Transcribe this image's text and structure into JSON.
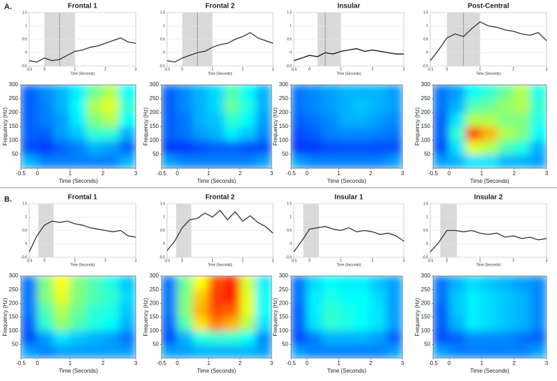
{
  "panels": [
    "A.",
    "B."
  ],
  "chart_data": [
    {
      "type": "line",
      "title": "Frontal 1",
      "xlabel": "Time (Seconds)",
      "x": [
        -0.5,
        -0.25,
        0,
        0.25,
        0.5,
        0.75,
        1,
        1.25,
        1.5,
        1.75,
        2,
        2.25,
        2.5,
        2.75,
        3
      ],
      "values": [
        -0.3,
        -0.35,
        -0.2,
        -0.3,
        -0.25,
        -0.1,
        0.05,
        0.1,
        0.2,
        0.25,
        0.35,
        0.45,
        0.55,
        0.4,
        0.35
      ],
      "color": "#333333",
      "xlim": [
        -0.5,
        3
      ],
      "xticks": [
        -0.5,
        0,
        1,
        2,
        3
      ],
      "ylim": [
        -0.5,
        1.5
      ],
      "yticks": [
        -0.5,
        0,
        0.5,
        1,
        1.5
      ],
      "highlight": [
        0,
        1
      ],
      "marker_x": 0.5
    },
    {
      "type": "line",
      "title": "Frontal 2",
      "xlabel": "Time (Seconds)",
      "x": [
        -0.5,
        -0.25,
        0,
        0.25,
        0.5,
        0.75,
        1,
        1.25,
        1.5,
        1.75,
        2,
        2.25,
        2.5,
        2.75,
        3
      ],
      "values": [
        -0.3,
        -0.35,
        -0.2,
        -0.1,
        0,
        0.05,
        0.2,
        0.3,
        0.35,
        0.5,
        0.6,
        0.75,
        0.55,
        0.45,
        0.35
      ],
      "color": "#333333",
      "xlim": [
        -0.5,
        3
      ],
      "xticks": [
        -0.5,
        0,
        1,
        2,
        3
      ],
      "ylim": [
        -0.5,
        1.5
      ],
      "yticks": [
        -0.5,
        0,
        0.5,
        1,
        1.5
      ],
      "highlight": [
        0,
        1
      ],
      "marker_x": 0.5
    },
    {
      "type": "line",
      "title": "Insular",
      "xlabel": "Time (Seconds)",
      "x": [
        -0.5,
        -0.25,
        0,
        0.25,
        0.5,
        0.75,
        1,
        1.25,
        1.5,
        1.75,
        2,
        2.25,
        2.5,
        2.75,
        3
      ],
      "values": [
        -0.3,
        -0.2,
        -0.1,
        -0.15,
        0,
        -0.05,
        0.05,
        0.1,
        0.15,
        0.05,
        0.1,
        0.05,
        0,
        -0.05,
        -0.05
      ],
      "color": "#111111",
      "xlim": [
        -0.5,
        3
      ],
      "xticks": [
        -0.5,
        0,
        1,
        2,
        3
      ],
      "ylim": [
        -0.5,
        1.5
      ],
      "yticks": [
        -0.5,
        0,
        0.5,
        1,
        1.5
      ],
      "highlight": [
        0.25,
        1
      ],
      "marker_x": 0.5
    },
    {
      "type": "line",
      "title": "Post-Central",
      "xlabel": "Time (Seconds)",
      "x": [
        -0.5,
        -0.25,
        0,
        0.25,
        0.5,
        0.75,
        1,
        1.25,
        1.5,
        1.75,
        2,
        2.25,
        2.5,
        2.75,
        3
      ],
      "values": [
        -0.3,
        0.1,
        0.55,
        0.7,
        0.6,
        0.9,
        1.15,
        1.0,
        0.95,
        0.85,
        0.8,
        0.7,
        0.65,
        0.75,
        0.45
      ],
      "color": "#333333",
      "xlim": [
        -0.5,
        3
      ],
      "xticks": [
        -0.5,
        0,
        1,
        2,
        3
      ],
      "ylim": [
        -0.5,
        1.5
      ],
      "yticks": [
        -0.5,
        0,
        0.5,
        1,
        1.5
      ],
      "highlight": [
        0,
        1
      ],
      "marker_x": 0.5
    },
    {
      "type": "heatmap",
      "xlabel": "Time (Seconds)",
      "ylabel": "Frequency (Hz)",
      "xlim": [
        -0.5,
        3
      ],
      "xticks": [
        -0.5,
        0,
        1,
        2,
        3
      ],
      "ylim": [
        0,
        300
      ],
      "yticks": [
        50,
        100,
        150,
        200,
        250,
        300
      ],
      "values": [
        [
          0.3,
          0.25,
          0.25,
          0.25,
          0.25,
          0.25,
          0.3
        ],
        [
          0.2,
          0.18,
          0.22,
          0.25,
          0.3,
          0.28,
          0.22
        ],
        [
          0.22,
          0.22,
          0.28,
          0.32,
          0.42,
          0.42,
          0.3
        ],
        [
          0.22,
          0.25,
          0.28,
          0.36,
          0.5,
          0.55,
          0.38
        ],
        [
          0.22,
          0.25,
          0.3,
          0.38,
          0.55,
          0.6,
          0.42
        ],
        [
          0.22,
          0.26,
          0.3,
          0.36,
          0.48,
          0.55,
          0.38
        ]
      ]
    },
    {
      "type": "heatmap",
      "xlabel": "Time (Seconds)",
      "ylabel": "Frequency (Hz)",
      "xlim": [
        -0.5,
        3
      ],
      "xticks": [
        -0.5,
        0,
        1,
        2,
        3
      ],
      "ylim": [
        0,
        300
      ],
      "yticks": [
        50,
        100,
        150,
        200,
        250,
        300
      ],
      "values": [
        [
          0.28,
          0.25,
          0.25,
          0.25,
          0.25,
          0.25,
          0.28
        ],
        [
          0.18,
          0.18,
          0.2,
          0.22,
          0.22,
          0.2,
          0.2
        ],
        [
          0.22,
          0.24,
          0.28,
          0.3,
          0.36,
          0.32,
          0.26
        ],
        [
          0.22,
          0.24,
          0.3,
          0.32,
          0.42,
          0.38,
          0.28
        ],
        [
          0.22,
          0.26,
          0.3,
          0.34,
          0.48,
          0.4,
          0.3
        ],
        [
          0.22,
          0.26,
          0.3,
          0.34,
          0.45,
          0.38,
          0.3
        ]
      ]
    },
    {
      "type": "heatmap",
      "xlabel": "Time (Seconds)",
      "ylabel": "Frequency (Hz)",
      "xlim": [
        -0.5,
        3
      ],
      "xticks": [
        -0.5,
        0,
        1,
        2,
        3
      ],
      "ylim": [
        0,
        300
      ],
      "yticks": [
        50,
        100,
        150,
        200,
        250,
        300
      ],
      "values": [
        [
          0.28,
          0.25,
          0.25,
          0.25,
          0.25,
          0.25,
          0.28
        ],
        [
          0.18,
          0.18,
          0.2,
          0.2,
          0.2,
          0.2,
          0.2
        ],
        [
          0.2,
          0.22,
          0.25,
          0.26,
          0.26,
          0.25,
          0.24
        ],
        [
          0.22,
          0.24,
          0.26,
          0.3,
          0.3,
          0.28,
          0.26
        ],
        [
          0.24,
          0.26,
          0.28,
          0.3,
          0.32,
          0.3,
          0.28
        ],
        [
          0.24,
          0.26,
          0.28,
          0.3,
          0.3,
          0.3,
          0.28
        ]
      ]
    },
    {
      "type": "heatmap",
      "xlabel": "Time (Seconds)",
      "ylabel": "Frequency (Hz)",
      "xlim": [
        -0.5,
        3
      ],
      "xticks": [
        -0.5,
        0,
        1,
        2,
        3
      ],
      "ylim": [
        0,
        300
      ],
      "yticks": [
        50,
        100,
        150,
        200,
        250,
        300
      ],
      "values": [
        [
          0.28,
          0.3,
          0.35,
          0.35,
          0.3,
          0.3,
          0.28
        ],
        [
          0.2,
          0.35,
          0.6,
          0.55,
          0.45,
          0.4,
          0.3
        ],
        [
          0.22,
          0.42,
          0.8,
          0.7,
          0.55,
          0.5,
          0.38
        ],
        [
          0.22,
          0.35,
          0.55,
          0.55,
          0.5,
          0.5,
          0.4
        ],
        [
          0.24,
          0.3,
          0.45,
          0.48,
          0.52,
          0.55,
          0.42
        ],
        [
          0.24,
          0.28,
          0.38,
          0.42,
          0.48,
          0.55,
          0.4
        ]
      ]
    },
    {
      "type": "line",
      "title": "Frontal 1",
      "xlabel": "Time (Seconds)",
      "x": [
        -0.5,
        -0.25,
        0,
        0.25,
        0.5,
        0.75,
        1,
        1.25,
        1.5,
        1.75,
        2,
        2.25,
        2.5,
        2.75,
        3
      ],
      "values": [
        -0.3,
        0.3,
        0.7,
        0.85,
        0.8,
        0.85,
        0.75,
        0.7,
        0.6,
        0.55,
        0.5,
        0.45,
        0.5,
        0.3,
        0.25
      ],
      "color": "#333333",
      "xlim": [
        -0.5,
        3
      ],
      "xticks": [
        -0.5,
        0,
        1,
        2,
        3
      ],
      "ylim": [
        -0.5,
        1.5
      ],
      "yticks": [
        -0.5,
        0,
        0.5,
        1,
        1.5
      ],
      "highlight": [
        -0.2,
        0.3
      ]
    },
    {
      "type": "line",
      "title": "Frontal 2",
      "xlabel": "Time (Seconds)",
      "x": [
        -0.5,
        -0.25,
        0,
        0.25,
        0.5,
        0.75,
        1,
        1.25,
        1.5,
        1.75,
        2,
        2.25,
        2.5,
        2.75,
        3
      ],
      "values": [
        -0.25,
        0.1,
        0.6,
        0.9,
        0.95,
        1.15,
        1.0,
        1.25,
        0.9,
        1.2,
        0.85,
        1.05,
        0.8,
        0.65,
        0.4
      ],
      "color": "#333333",
      "xlim": [
        -0.5,
        3
      ],
      "xticks": [
        -0.5,
        0,
        1,
        2,
        3
      ],
      "ylim": [
        -0.5,
        1.5
      ],
      "yticks": [
        -0.5,
        0,
        0.5,
        1,
        1.5
      ],
      "highlight": [
        -0.2,
        0.3
      ]
    },
    {
      "type": "line",
      "title": "Insular 1",
      "xlabel": "Time (Seconds)",
      "x": [
        -0.5,
        -0.25,
        0,
        0.25,
        0.5,
        0.75,
        1,
        1.25,
        1.5,
        1.75,
        2,
        2.25,
        2.5,
        2.75,
        3
      ],
      "values": [
        -0.3,
        0.1,
        0.55,
        0.6,
        0.65,
        0.55,
        0.5,
        0.6,
        0.45,
        0.5,
        0.45,
        0.35,
        0.4,
        0.3,
        0.1
      ],
      "color": "#333333",
      "xlim": [
        -0.5,
        3
      ],
      "xticks": [
        -0.5,
        0,
        1,
        2,
        3
      ],
      "ylim": [
        -0.5,
        1.5
      ],
      "yticks": [
        -0.5,
        0,
        0.5,
        1,
        1.5
      ],
      "highlight": [
        -0.2,
        0.3
      ]
    },
    {
      "type": "line",
      "title": "Insular 2",
      "xlabel": "Time (Seconds)",
      "x": [
        -0.5,
        -0.25,
        0,
        0.25,
        0.5,
        0.75,
        1,
        1.25,
        1.5,
        1.75,
        2,
        2.25,
        2.5,
        2.75,
        3
      ],
      "values": [
        -0.3,
        0.05,
        0.5,
        0.5,
        0.45,
        0.5,
        0.4,
        0.35,
        0.4,
        0.25,
        0.3,
        0.2,
        0.25,
        0.15,
        0.2
      ],
      "color": "#333333",
      "xlim": [
        -0.5,
        3
      ],
      "xticks": [
        -0.5,
        0,
        1,
        2,
        3
      ],
      "ylim": [
        -0.5,
        1.5
      ],
      "yticks": [
        -0.5,
        0,
        0.5,
        1,
        1.5
      ],
      "highlight": [
        -0.2,
        0.3
      ]
    },
    {
      "type": "heatmap",
      "xlabel": "Time (Seconds)",
      "ylabel": "Frequency (Hz)",
      "xlim": [
        -0.5,
        3
      ],
      "xticks": [
        -0.5,
        0,
        1,
        2,
        3
      ],
      "ylim": [
        0,
        300
      ],
      "yticks": [
        50,
        100,
        150,
        200,
        250,
        300
      ],
      "values": [
        [
          0.28,
          0.25,
          0.28,
          0.28,
          0.28,
          0.28,
          0.28
        ],
        [
          0.2,
          0.28,
          0.35,
          0.32,
          0.3,
          0.28,
          0.24
        ],
        [
          0.22,
          0.42,
          0.52,
          0.45,
          0.4,
          0.38,
          0.3
        ],
        [
          0.24,
          0.45,
          0.55,
          0.48,
          0.42,
          0.4,
          0.32
        ],
        [
          0.24,
          0.5,
          0.6,
          0.5,
          0.45,
          0.42,
          0.34
        ],
        [
          0.24,
          0.5,
          0.62,
          0.5,
          0.45,
          0.4,
          0.32
        ]
      ]
    },
    {
      "type": "heatmap",
      "xlabel": "Time (Seconds)",
      "ylabel": "Frequency (Hz)",
      "xlim": [
        -0.5,
        3
      ],
      "xticks": [
        -0.5,
        0,
        1,
        2,
        3
      ],
      "ylim": [
        0,
        300
      ],
      "yticks": [
        50,
        100,
        150,
        200,
        250,
        300
      ],
      "values": [
        [
          0.28,
          0.28,
          0.3,
          0.3,
          0.3,
          0.3,
          0.28
        ],
        [
          0.2,
          0.3,
          0.4,
          0.42,
          0.42,
          0.38,
          0.26
        ],
        [
          0.22,
          0.45,
          0.65,
          0.75,
          0.7,
          0.55,
          0.35
        ],
        [
          0.24,
          0.5,
          0.7,
          0.8,
          0.78,
          0.6,
          0.38
        ],
        [
          0.24,
          0.5,
          0.68,
          0.82,
          0.85,
          0.6,
          0.38
        ],
        [
          0.24,
          0.48,
          0.62,
          0.8,
          0.85,
          0.58,
          0.36
        ]
      ]
    },
    {
      "type": "heatmap",
      "xlabel": "Time (Seconds)",
      "ylabel": "Frequency (Hz)",
      "xlim": [
        -0.5,
        3
      ],
      "xticks": [
        -0.5,
        0,
        1,
        2,
        3
      ],
      "ylim": [
        0,
        300
      ],
      "yticks": [
        50,
        100,
        150,
        200,
        250,
        300
      ],
      "values": [
        [
          0.28,
          0.25,
          0.25,
          0.25,
          0.25,
          0.25,
          0.28
        ],
        [
          0.2,
          0.25,
          0.3,
          0.3,
          0.3,
          0.28,
          0.22
        ],
        [
          0.22,
          0.35,
          0.42,
          0.4,
          0.38,
          0.35,
          0.28
        ],
        [
          0.22,
          0.36,
          0.42,
          0.4,
          0.38,
          0.35,
          0.28
        ],
        [
          0.24,
          0.36,
          0.4,
          0.38,
          0.38,
          0.34,
          0.28
        ],
        [
          0.24,
          0.34,
          0.38,
          0.36,
          0.36,
          0.32,
          0.28
        ]
      ]
    },
    {
      "type": "heatmap",
      "xlabel": "Time (Seconds)",
      "ylabel": "Frequency (Hz)",
      "xlim": [
        -0.5,
        3
      ],
      "xticks": [
        -0.5,
        0,
        1,
        2,
        3
      ],
      "ylim": [
        0,
        300
      ],
      "yticks": [
        50,
        100,
        150,
        200,
        250,
        300
      ],
      "values": [
        [
          0.28,
          0.25,
          0.25,
          0.25,
          0.25,
          0.25,
          0.28
        ],
        [
          0.2,
          0.22,
          0.26,
          0.26,
          0.26,
          0.24,
          0.22
        ],
        [
          0.22,
          0.3,
          0.36,
          0.34,
          0.32,
          0.3,
          0.26
        ],
        [
          0.22,
          0.32,
          0.36,
          0.34,
          0.32,
          0.3,
          0.26
        ],
        [
          0.24,
          0.32,
          0.36,
          0.34,
          0.32,
          0.3,
          0.26
        ],
        [
          0.24,
          0.3,
          0.34,
          0.32,
          0.3,
          0.28,
          0.26
        ]
      ]
    }
  ]
}
